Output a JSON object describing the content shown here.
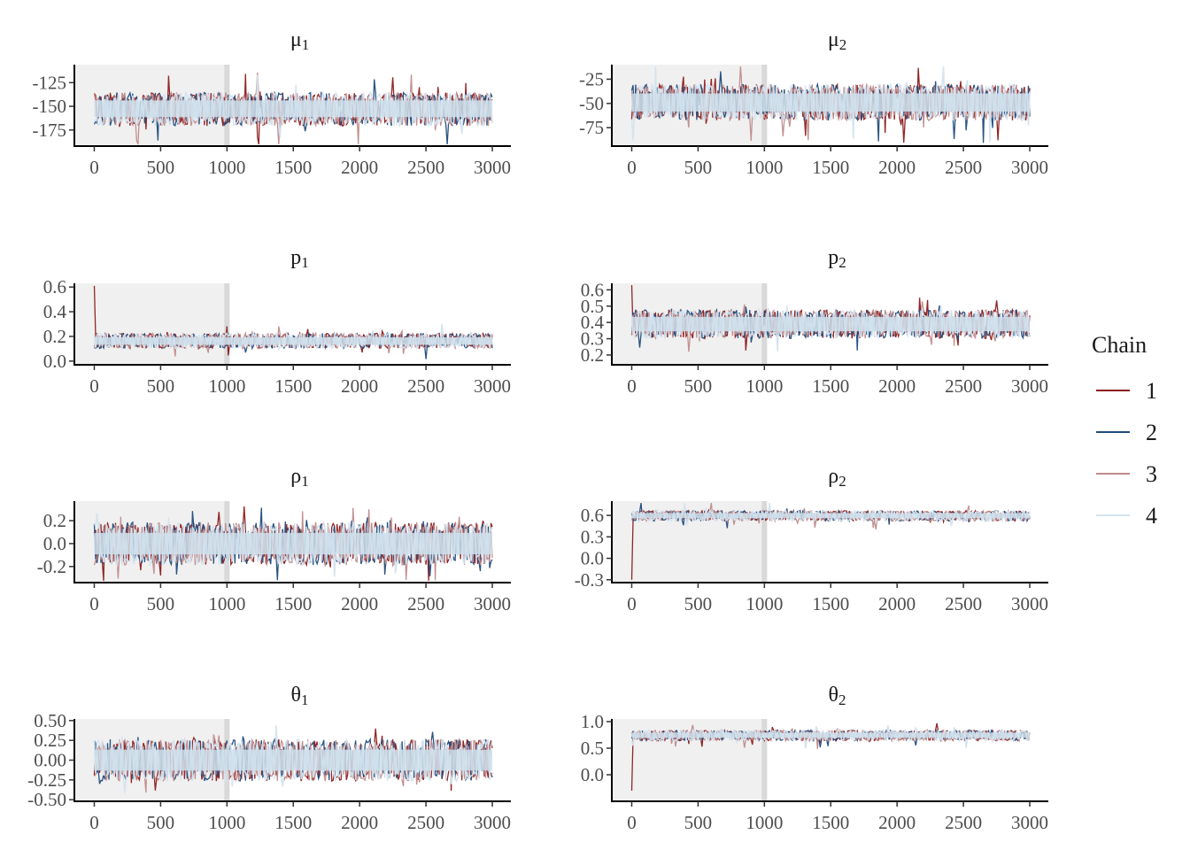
{
  "chart_data": [
    {
      "type": "line",
      "param": "mu",
      "sub": "1",
      "title": "μ₁",
      "ylim": [
        -192,
        -106
      ],
      "yticks": [
        -175,
        -150,
        -125
      ],
      "xlim": [
        -150,
        3140
      ],
      "xticks": [
        0,
        500,
        1000,
        1500,
        2000,
        2500,
        3000
      ],
      "warmup": [
        -150,
        1000
      ],
      "trace_center": -152,
      "trace_half_band": [
        -17,
        15
      ],
      "trace_spike": 28
    },
    {
      "type": "line",
      "param": "mu",
      "sub": "2",
      "title": "μ₂",
      "ylim": [
        -94,
        -10
      ],
      "yticks": [
        -75,
        -50,
        -25
      ],
      "xlim": [
        -150,
        3140
      ],
      "xticks": [
        0,
        500,
        1000,
        1500,
        2000,
        2500,
        3000
      ],
      "warmup": [
        -150,
        1000
      ],
      "trace_center": -49,
      "trace_half_band": [
        -17,
        17
      ],
      "trace_spike": 30
    },
    {
      "type": "line",
      "param": "p",
      "sub": "1",
      "title": "p₁",
      "ylim": [
        -0.03,
        0.63
      ],
      "yticks": [
        0.0,
        0.2,
        0.4,
        0.6
      ],
      "xlim": [
        -150,
        3140
      ],
      "xticks": [
        0,
        500,
        1000,
        1500,
        2000,
        2500,
        3000
      ],
      "warmup": [
        -150,
        1000
      ],
      "trace_center": 0.16,
      "trace_half_band": [
        -0.05,
        0.06
      ],
      "trace_spike": 0.1,
      "start_spike": 0.61
    },
    {
      "type": "line",
      "param": "p",
      "sub": "2",
      "title": "p₂",
      "ylim": [
        0.14,
        0.64
      ],
      "yticks": [
        0.2,
        0.3,
        0.4,
        0.5,
        0.6
      ],
      "xlim": [
        -150,
        3140
      ],
      "xticks": [
        0,
        500,
        1000,
        1500,
        2000,
        2500,
        3000
      ],
      "warmup": [
        -150,
        1000
      ],
      "trace_center": 0.39,
      "trace_half_band": [
        -0.08,
        0.08
      ],
      "trace_spike": 0.1,
      "start_spike": 0.63
    },
    {
      "type": "line",
      "param": "rho",
      "sub": "1",
      "title": "ρ₁",
      "ylim": [
        -0.34,
        0.37
      ],
      "yticks": [
        -0.2,
        0.0,
        0.2
      ],
      "xlim": [
        -150,
        3140
      ],
      "xticks": [
        0,
        500,
        1000,
        1500,
        2000,
        2500,
        3000
      ],
      "warmup": [
        -150,
        1000
      ],
      "trace_center": 0.0,
      "trace_half_band": [
        -0.17,
        0.17
      ],
      "trace_spike": 0.18
    },
    {
      "type": "line",
      "param": "rho",
      "sub": "2",
      "title": "ρ₂",
      "ylim": [
        -0.34,
        0.8
      ],
      "yticks": [
        -0.3,
        0.0,
        0.3,
        0.6
      ],
      "xlim": [
        -150,
        3140
      ],
      "xticks": [
        0,
        500,
        1000,
        1500,
        2000,
        2500,
        3000
      ],
      "warmup": [
        -150,
        1000
      ],
      "trace_center": 0.6,
      "trace_half_band": [
        -0.07,
        0.06
      ],
      "trace_spike": 0.15,
      "start_spike": -0.3
    },
    {
      "type": "line",
      "param": "theta",
      "sub": "1",
      "title": "θ₁",
      "ylim": [
        -0.52,
        0.52
      ],
      "yticks": [
        -0.5,
        -0.25,
        0.0,
        0.25,
        0.5
      ],
      "xlim": [
        -150,
        3140
      ],
      "xticks": [
        0,
        500,
        1000,
        1500,
        2000,
        2500,
        3000
      ],
      "warmup": [
        -150,
        1000
      ],
      "trace_center": 0.0,
      "trace_half_band": [
        -0.24,
        0.24
      ],
      "trace_spike": 0.22
    },
    {
      "type": "line",
      "param": "theta",
      "sub": "2",
      "title": "θ₂",
      "ylim": [
        -0.5,
        1.05
      ],
      "yticks": [
        0.0,
        0.5,
        1.0
      ],
      "xlim": [
        -150,
        3140
      ],
      "xticks": [
        0,
        500,
        1000,
        1500,
        2000,
        2500,
        3000
      ],
      "warmup": [
        -150,
        1000
      ],
      "trace_center": 0.75,
      "trace_half_band": [
        -0.1,
        0.08
      ],
      "trace_spike": 0.2,
      "start_spike": -0.3
    }
  ],
  "legend": {
    "title": "Chain",
    "placement": "right",
    "entries": [
      {
        "label": "1",
        "color": "#8b1a1a"
      },
      {
        "label": "2",
        "color": "#1f4a7a"
      },
      {
        "label": "3",
        "color": "#c08a8a"
      },
      {
        "label": "4",
        "color": "#d4e3ee"
      }
    ]
  },
  "colors": {
    "band_fill": "#cfe0ec",
    "warmup_shade": "#e6e6e6"
  }
}
